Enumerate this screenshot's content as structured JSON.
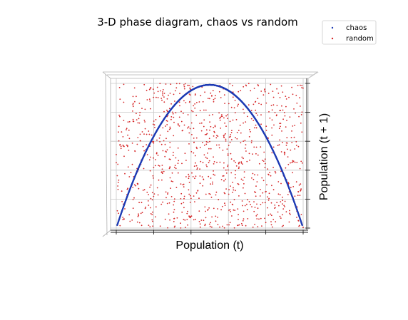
{
  "chart_data": {
    "type": "scatter",
    "title": "3-D phase diagram, chaos vs random",
    "xlabel": "Population (t)",
    "ylabel": "Population (t + 1)",
    "xlim": [
      0,
      1
    ],
    "ylim": [
      0,
      1
    ],
    "grid": true,
    "legend_position": "top-right",
    "series": [
      {
        "name": "chaos",
        "color": "#1f3cb4",
        "r": 3.99,
        "n_points": 2000,
        "description_shape": "logistic parabola y = r*x*(1-x)"
      },
      {
        "name": "random",
        "color": "#d62728",
        "n_points": 1000,
        "distribution": "uniform"
      }
    ]
  }
}
